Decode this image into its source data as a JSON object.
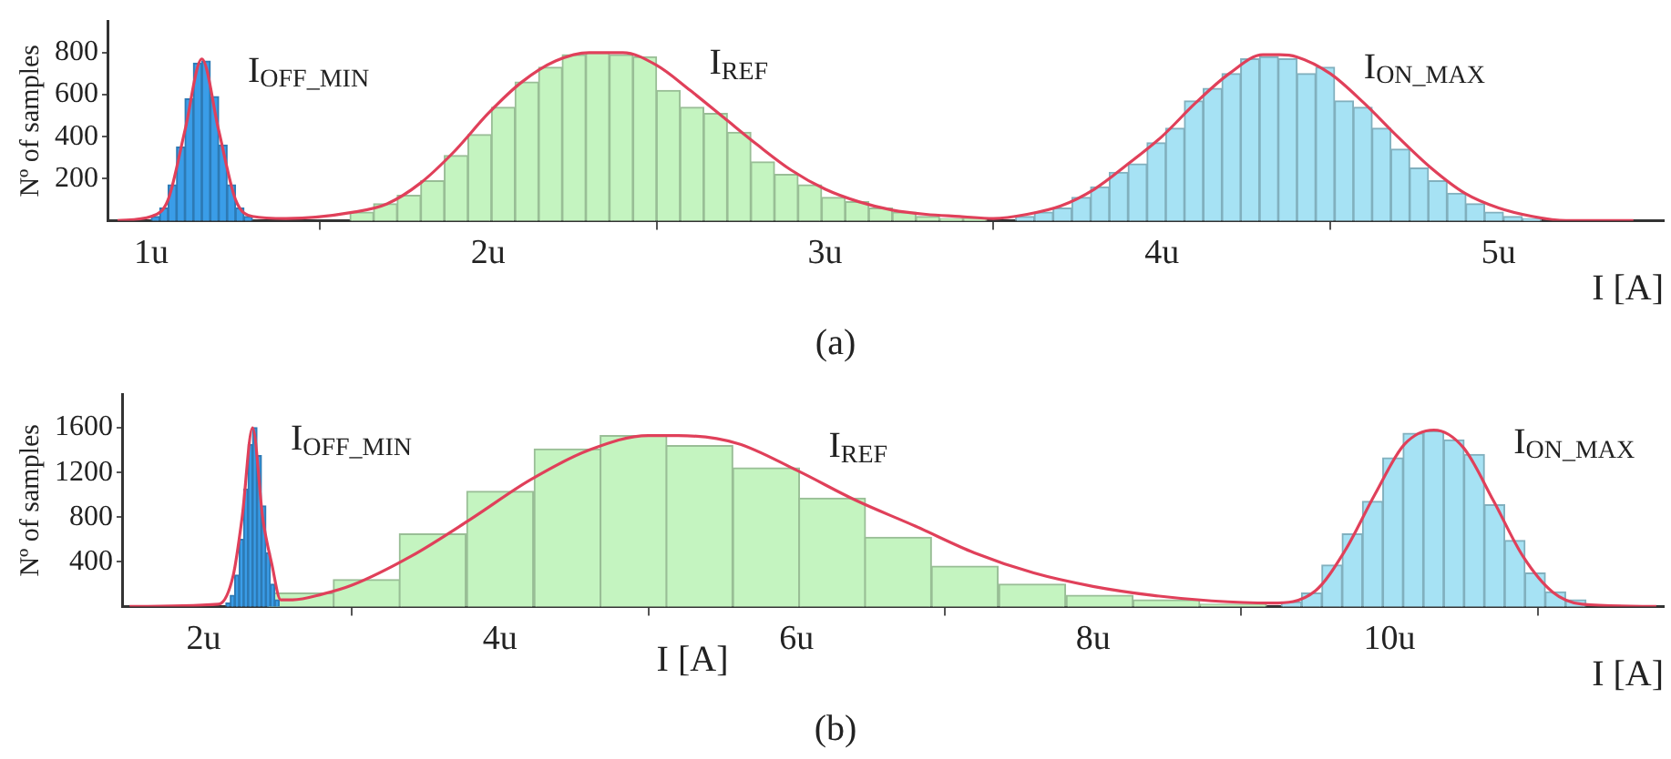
{
  "chart_data": [
    {
      "type": "histogram",
      "title": "(a)",
      "xlabel": "I [A]",
      "ylabel": "Nº of samples",
      "xlim": [
        0.87,
        5.49
      ],
      "xticks": [
        {
          "value": 1,
          "label": "1u"
        },
        {
          "value": 2,
          "label": "2u"
        },
        {
          "value": 3,
          "label": "3u"
        },
        {
          "value": 4,
          "label": "4u"
        },
        {
          "value": 5,
          "label": "5u"
        }
      ],
      "ylim": [
        0,
        950
      ],
      "yticks": [
        200,
        400,
        600,
        800
      ],
      "grid": false,
      "legend": false,
      "marker": "none",
      "series": [
        {
          "name": "I$_{OFF_MIN}$",
          "color": "#3a9de8",
          "bins": [
            1.0,
            1.025,
            1.05,
            1.075,
            1.1,
            1.125,
            1.15,
            1.175,
            1.2,
            1.225,
            1.25,
            1.275,
            1.3
          ],
          "values": [
            20,
            60,
            170,
            350,
            580,
            750,
            760,
            590,
            360,
            170,
            60,
            20
          ]
        },
        {
          "name": "I$_{REF}$",
          "color": "#c4f4c0",
          "bins": [
            1.59,
            1.66,
            1.73,
            1.8,
            1.87,
            1.94,
            2.01,
            2.08,
            2.15,
            2.22,
            2.29,
            2.36,
            2.43,
            2.5,
            2.57,
            2.64,
            2.71,
            2.78,
            2.85,
            2.92,
            2.99,
            3.06,
            3.13,
            3.2,
            3.27,
            3.34,
            3.41,
            3.48
          ],
          "values": [
            40,
            80,
            120,
            190,
            310,
            410,
            540,
            660,
            730,
            790,
            800,
            790,
            780,
            620,
            540,
            510,
            420,
            280,
            220,
            170,
            110,
            90,
            60,
            40,
            20,
            10,
            10
          ]
        },
        {
          "name": "I$_{ON_MAX}$",
          "color": "#a6e2f4",
          "bins": [
            3.566,
            3.622,
            3.677,
            3.733,
            3.789,
            3.844,
            3.9,
            3.956,
            4.012,
            4.067,
            4.123,
            4.179,
            4.234,
            4.29,
            4.346,
            4.401,
            4.457,
            4.513,
            4.569,
            4.624,
            4.68,
            4.736,
            4.791,
            4.847,
            4.903,
            4.958,
            5.014,
            5.07,
            5.126
          ],
          "values": [
            20,
            40,
            60,
            110,
            160,
            230,
            270,
            370,
            440,
            570,
            630,
            700,
            770,
            780,
            770,
            700,
            730,
            570,
            540,
            440,
            340,
            250,
            190,
            130,
            80,
            40,
            20,
            10
          ]
        },
        {
          "type": "line",
          "color": "#e0405a",
          "x": [
            0.9,
            1.0,
            1.05,
            1.1,
            1.15,
            1.2,
            1.25,
            1.3,
            1.4,
            1.6,
            1.7,
            1.8,
            1.9,
            2.0,
            2.1,
            2.2,
            2.3,
            2.4,
            2.5,
            2.6,
            2.7,
            2.8,
            2.9,
            3.0,
            3.1,
            3.2,
            3.3,
            3.4,
            3.5,
            3.6,
            3.7,
            3.8,
            3.9,
            4.0,
            4.1,
            4.2,
            4.3,
            4.35,
            4.4,
            4.5,
            4.6,
            4.7,
            4.8,
            4.9,
            5.0,
            5.1,
            5.2,
            5.4
          ],
          "values": [
            0,
            20,
            100,
            430,
            770,
            430,
            100,
            20,
            10,
            40,
            80,
            180,
            330,
            510,
            660,
            760,
            800,
            800,
            740,
            620,
            490,
            360,
            240,
            150,
            90,
            50,
            30,
            20,
            10,
            30,
            70,
            150,
            270,
            400,
            560,
            700,
            790,
            790,
            780,
            700,
            560,
            400,
            250,
            130,
            60,
            20,
            0,
            0
          ]
        }
      ]
    },
    {
      "type": "histogram",
      "title": "(b)",
      "xlabel": "I [A]",
      "ylabel": "Nº of samples",
      "annotations": [
        "I [A]"
      ],
      "xlim": [
        1.45,
        11.85
      ],
      "xticks": [
        {
          "value": 2,
          "label": "2u"
        },
        {
          "value": 4,
          "label": "4u"
        },
        {
          "value": 6,
          "label": "6u"
        },
        {
          "value": 8,
          "label": "8u"
        },
        {
          "value": 10,
          "label": "10u"
        }
      ],
      "ylim": [
        0,
        1900
      ],
      "yticks": [
        400,
        800,
        1200,
        1600
      ],
      "grid": false,
      "legend": false,
      "marker": "none",
      "series": [
        {
          "name": "I$_{OFF_MIN}$",
          "color": "#3a9de8",
          "bins": [
            2.15,
            2.18,
            2.21,
            2.24,
            2.27,
            2.3,
            2.33,
            2.36,
            2.39,
            2.42,
            2.45,
            2.48,
            2.51
          ],
          "values": [
            30,
            100,
            280,
            600,
            1050,
            1450,
            1600,
            1350,
            900,
            480,
            200,
            60
          ]
        },
        {
          "name": "I$_{REF}$",
          "color": "#c4f4c0",
          "bins": [
            2.43,
            2.88,
            3.32,
            3.77,
            4.23,
            4.68,
            5.12,
            5.57,
            6.02,
            6.46,
            6.91,
            7.36,
            7.82,
            8.27,
            8.72,
            9.17
          ],
          "values": [
            120,
            240,
            650,
            1030,
            1410,
            1530,
            1440,
            1240,
            970,
            620,
            360,
            200,
            100,
            60,
            20
          ]
        },
        {
          "name": "I$_{ON_MAX}$",
          "color": "#a6e2f4",
          "bins": [
            9.27,
            9.407,
            9.544,
            9.681,
            9.818,
            9.955,
            10.092,
            10.229,
            10.366,
            10.503,
            10.64,
            10.777,
            10.914,
            11.051,
            11.188,
            11.325
          ],
          "values": [
            40,
            120,
            370,
            650,
            940,
            1330,
            1550,
            1570,
            1490,
            1360,
            910,
            590,
            300,
            130,
            60
          ]
        },
        {
          "type": "line",
          "color": "#e0405a",
          "x": [
            1.5,
            2.1,
            2.2,
            2.26,
            2.33,
            2.4,
            2.46,
            2.52,
            2.6,
            2.8,
            3.0,
            3.4,
            3.8,
            4.2,
            4.6,
            5.0,
            5.2,
            5.6,
            6.0,
            6.4,
            6.8,
            7.2,
            7.6,
            8.0,
            8.4,
            8.8,
            9.2,
            9.5,
            9.7,
            9.9,
            10.1,
            10.3,
            10.5,
            10.7,
            10.9,
            11.1,
            11.3,
            11.8
          ],
          "values": [
            0,
            20,
            280,
            800,
            1600,
            780,
            380,
            60,
            60,
            110,
            190,
            450,
            780,
            1130,
            1400,
            1530,
            1530,
            1460,
            1220,
            950,
            720,
            480,
            300,
            180,
            100,
            50,
            30,
            140,
            500,
            1000,
            1450,
            1580,
            1420,
            950,
            450,
            130,
            20,
            0
          ]
        }
      ]
    }
  ]
}
